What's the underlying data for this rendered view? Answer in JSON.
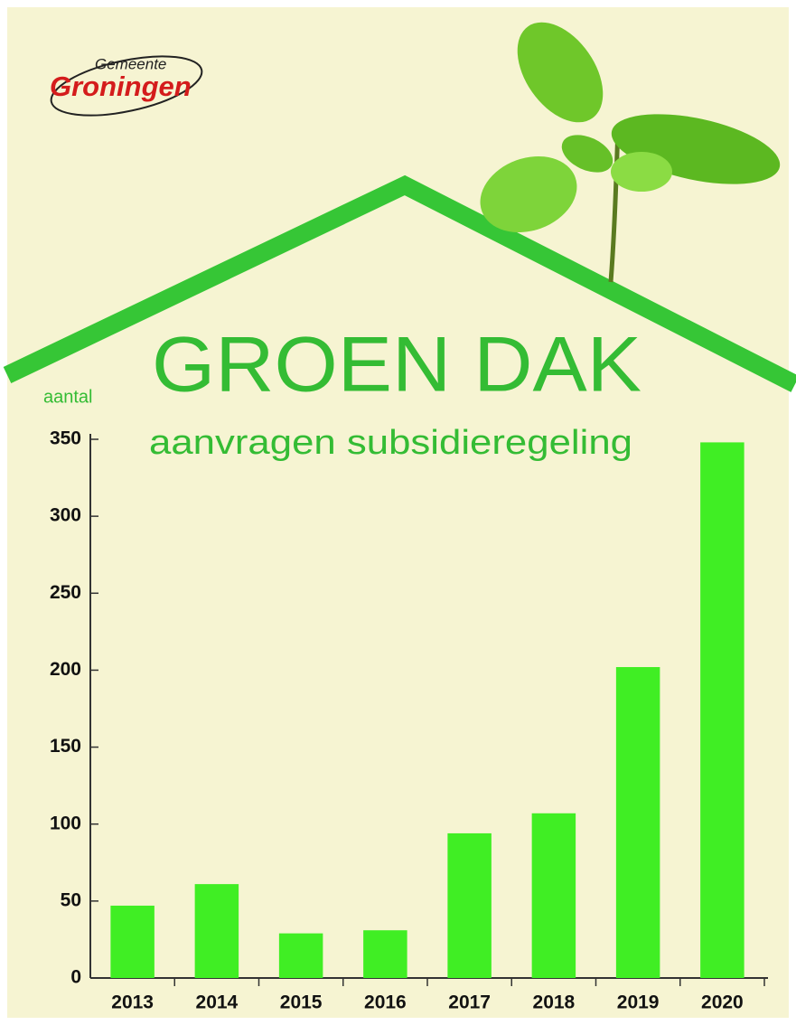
{
  "chart_data": {
    "type": "bar",
    "title": "GROEN DAK",
    "subtitle": "aanvragen subsidieregeling",
    "y_label": "aantal",
    "logo": {
      "line1": "Gemeente",
      "line2": "Groningen"
    },
    "categories": [
      "2013",
      "2014",
      "2015",
      "2016",
      "2017",
      "2018",
      "2019",
      "2020"
    ],
    "values": [
      47,
      61,
      29,
      31,
      94,
      107,
      202,
      348
    ],
    "color": "#40ee24",
    "ylim": [
      0,
      350
    ],
    "yticks": [
      0,
      50,
      100,
      150,
      200,
      250,
      300,
      350
    ],
    "grid": false
  }
}
